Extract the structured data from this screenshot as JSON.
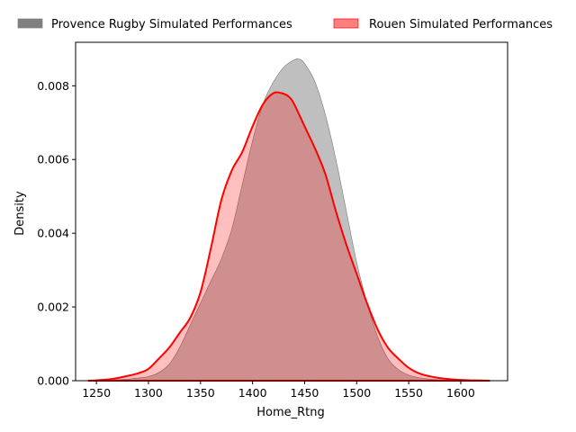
{
  "chart_data": {
    "type": "area",
    "xlabel": "Home_Rtng",
    "ylabel": "Density",
    "xlim": [
      1230,
      1645
    ],
    "ylim": [
      0,
      0.00918
    ],
    "x_ticks": [
      1250,
      1300,
      1350,
      1400,
      1450,
      1500,
      1550,
      1600
    ],
    "y_ticks": [
      0.0,
      0.002,
      0.004,
      0.006,
      0.008
    ],
    "y_tick_labels": [
      "0.000",
      "0.002",
      "0.004",
      "0.006",
      "0.008"
    ],
    "grid": false,
    "legend_position": "top",
    "series": [
      {
        "name": "Provence Rugby Simulated Performances",
        "fill_color": "#808080",
        "fill_opacity": 0.5,
        "line_color": "#808080",
        "x": [
          1245,
          1260,
          1275,
          1290,
          1300,
          1310,
          1320,
          1330,
          1340,
          1350,
          1360,
          1370,
          1380,
          1390,
          1400,
          1410,
          1420,
          1430,
          1440,
          1445,
          1450,
          1460,
          1470,
          1480,
          1490,
          1500,
          1510,
          1520,
          1530,
          1540,
          1550,
          1560,
          1575,
          1600
        ],
        "y": [
          0.0,
          1e-05,
          3e-05,
          7e-05,
          0.00011,
          0.00022,
          0.00045,
          0.0009,
          0.0015,
          0.0021,
          0.0027,
          0.0033,
          0.0041,
          0.0053,
          0.0065,
          0.0075,
          0.0081,
          0.0085,
          0.0087,
          0.00872,
          0.0086,
          0.0081,
          0.0072,
          0.006,
          0.0046,
          0.0032,
          0.0021,
          0.0012,
          0.0006,
          0.0003,
          0.00015,
          8e-05,
          3e-05,
          0.0
        ]
      },
      {
        "name": "Rouen Simulated Performances",
        "fill_color": "#ff0000",
        "fill_opacity": 0.25,
        "line_color": "#ff0000",
        "x": [
          1242,
          1250,
          1260,
          1270,
          1280,
          1290,
          1300,
          1310,
          1320,
          1330,
          1340,
          1350,
          1360,
          1370,
          1380,
          1390,
          1400,
          1410,
          1420,
          1428,
          1435,
          1440,
          1450,
          1460,
          1470,
          1480,
          1490,
          1500,
          1510,
          1520,
          1530,
          1540,
          1550,
          1560,
          1570,
          1580,
          1590,
          1600,
          1610,
          1620,
          1628
        ],
        "y": [
          0.0,
          1e-05,
          3e-05,
          7e-05,
          0.00013,
          0.0002,
          0.00032,
          0.0006,
          0.0009,
          0.0013,
          0.0017,
          0.0024,
          0.0036,
          0.0049,
          0.0057,
          0.0062,
          0.0069,
          0.0075,
          0.0078,
          0.0078,
          0.0077,
          0.0075,
          0.0069,
          0.0063,
          0.0056,
          0.0046,
          0.0037,
          0.0029,
          0.0021,
          0.0014,
          0.0009,
          0.0006,
          0.00035,
          0.0002,
          0.00012,
          7e-05,
          4e-05,
          2e-05,
          1e-05,
          5e-06,
          0.0
        ]
      }
    ]
  }
}
